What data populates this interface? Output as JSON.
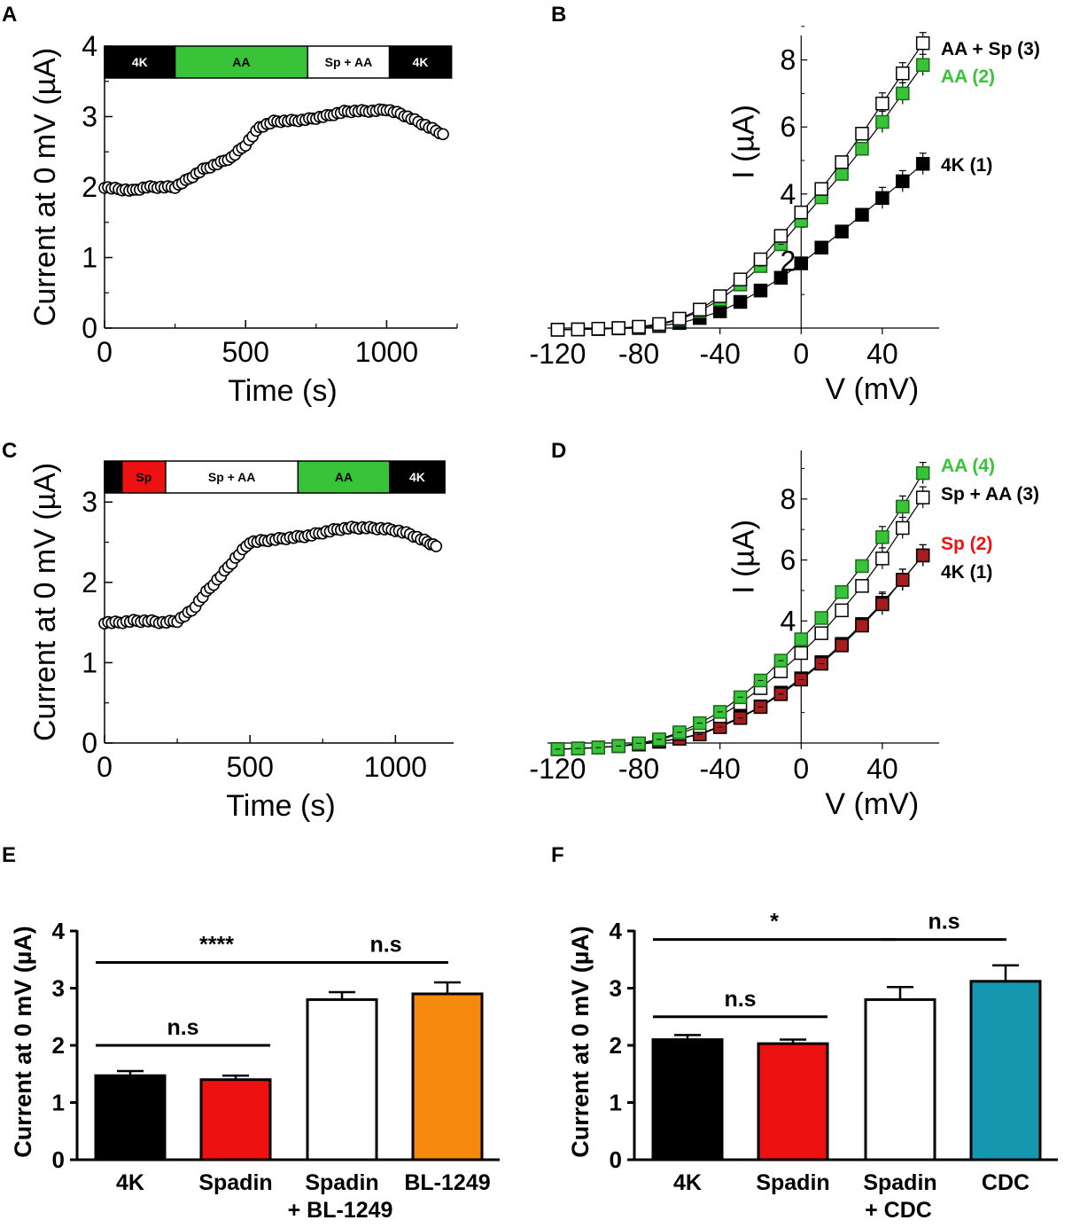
{
  "panels": {
    "A": "A",
    "B": "B",
    "C": "C",
    "D": "D",
    "E": "E",
    "F": "F"
  },
  "colors": {
    "black": "#000000",
    "green": "#38c338",
    "red": "#ee1111",
    "orange": "#f7890f",
    "teal": "#1697b0",
    "white": "#ffffff"
  },
  "chart_data": [
    {
      "id": "A",
      "type": "scatter",
      "xlabel": "Time (s)",
      "ylabel": "Current at 0 mV (µA)",
      "xlim": [
        0,
        1250
      ],
      "ylim": [
        0,
        4
      ],
      "xticks": [
        "0",
        "500",
        "1000"
      ],
      "yticks": [
        "0",
        "1",
        "2",
        "3",
        "4"
      ],
      "protocol": [
        {
          "label": "4K",
          "start": 0,
          "end": 250,
          "color": "#000000",
          "text_color": "#ffffff"
        },
        {
          "label": "AA",
          "start": 250,
          "end": 720,
          "color": "#38c338",
          "text_color": "#000000"
        },
        {
          "label": "Sp + AA",
          "start": 720,
          "end": 1010,
          "color": "#ffffff",
          "text_color": "#000000"
        },
        {
          "label": "4K",
          "start": 1010,
          "end": 1230,
          "color": "#000000",
          "text_color": "#ffffff"
        }
      ],
      "trace": {
        "x": [
          0,
          50,
          100,
          150,
          200,
          250,
          300,
          350,
          400,
          450,
          500,
          550,
          600,
          650,
          700,
          750,
          800,
          850,
          900,
          950,
          1000,
          1050,
          1100,
          1150,
          1200
        ],
        "y": [
          2.0,
          1.97,
          1.95,
          2.0,
          2.0,
          2.0,
          2.12,
          2.25,
          2.33,
          2.42,
          2.6,
          2.85,
          2.93,
          2.94,
          2.95,
          2.98,
          3.02,
          3.07,
          3.08,
          3.08,
          3.1,
          3.04,
          2.95,
          2.85,
          2.75
        ]
      }
    },
    {
      "id": "B",
      "type": "line",
      "xlabel": "V (mV)",
      "ylabel": "I (µA)",
      "xlim": [
        -125,
        68
      ],
      "ylim": [
        -0.2,
        9.0
      ],
      "xticks": [
        "-120",
        "-80",
        "-40",
        "0",
        "40"
      ],
      "yticks": [
        "2",
        "4",
        "6",
        "8"
      ],
      "x": [
        -120,
        -110,
        -100,
        -90,
        -80,
        -70,
        -60,
        -50,
        -40,
        -30,
        -20,
        -10,
        0,
        10,
        20,
        30,
        40,
        50,
        60
      ],
      "series": [
        {
          "name": "4K (1)",
          "color": "#000000",
          "fill": "#000000",
          "values": [
            -0.05,
            -0.04,
            -0.03,
            -0.01,
            0.0,
            0.06,
            0.15,
            0.3,
            0.5,
            0.78,
            1.12,
            1.5,
            1.93,
            2.4,
            2.88,
            3.38,
            3.88,
            4.38,
            4.9
          ]
        },
        {
          "name": "AA (2)",
          "color": "#38c338",
          "fill": "#38c338",
          "values": [
            -0.05,
            -0.04,
            -0.02,
            0.0,
            0.03,
            0.1,
            0.25,
            0.5,
            0.85,
            1.3,
            1.85,
            2.5,
            3.2,
            3.9,
            4.6,
            5.35,
            6.15,
            7.0,
            7.85
          ]
        },
        {
          "name": "AA + Sp (3)",
          "color": "#000000",
          "fill": "#ffffff",
          "values": [
            -0.05,
            -0.04,
            -0.02,
            0.0,
            0.04,
            0.12,
            0.28,
            0.55,
            0.95,
            1.45,
            2.05,
            2.75,
            3.45,
            4.15,
            4.95,
            5.8,
            6.7,
            7.6,
            8.5
          ]
        }
      ]
    },
    {
      "id": "C",
      "type": "scatter",
      "xlabel": "Time (s)",
      "ylabel": "Current at 0 mV (µA)",
      "xlim": [
        0,
        1200
      ],
      "ylim": [
        0,
        3.4
      ],
      "xticks": [
        "0",
        "500",
        "1000"
      ],
      "yticks": [
        "0",
        "1",
        "2",
        "3"
      ],
      "protocol": [
        {
          "label": "Sp",
          "start": 60,
          "end": 210,
          "color": "#ee1111",
          "text_color": "#000000"
        },
        {
          "label": "Sp + AA",
          "start": 210,
          "end": 665,
          "color": "#ffffff",
          "text_color": "#000000"
        },
        {
          "label": "AA",
          "start": 665,
          "end": 980,
          "color": "#38c338",
          "text_color": "#000000"
        },
        {
          "label": "4K",
          "start": 980,
          "end": 1170,
          "color": "#000000",
          "text_color": "#ffffff"
        }
      ],
      "trace": {
        "x": [
          0,
          50,
          100,
          150,
          200,
          250,
          300,
          350,
          400,
          450,
          500,
          550,
          600,
          650,
          700,
          750,
          800,
          850,
          900,
          950,
          1000,
          1050,
          1100,
          1140
        ],
        "y": [
          1.5,
          1.5,
          1.52,
          1.52,
          1.5,
          1.52,
          1.65,
          1.88,
          2.08,
          2.3,
          2.5,
          2.52,
          2.54,
          2.56,
          2.58,
          2.62,
          2.66,
          2.68,
          2.68,
          2.67,
          2.65,
          2.6,
          2.52,
          2.45
        ]
      }
    },
    {
      "id": "D",
      "type": "line",
      "xlabel": "V (mV)",
      "ylabel": "I (µA)",
      "xlim": [
        -125,
        68
      ],
      "ylim": [
        -0.2,
        9.3
      ],
      "xticks": [
        "-120",
        "-80",
        "-40",
        "0",
        "40"
      ],
      "yticks": [
        "4",
        "6",
        "8"
      ],
      "x": [
        -120,
        -110,
        -100,
        -90,
        -80,
        -70,
        -60,
        -50,
        -40,
        -30,
        -20,
        -10,
        0,
        10,
        20,
        30,
        40,
        50,
        60
      ],
      "series": [
        {
          "name": "4K (1)",
          "color": "#000000",
          "fill": "#000000",
          "values": [
            -0.2,
            -0.18,
            -0.15,
            -0.1,
            -0.05,
            0.05,
            0.15,
            0.3,
            0.55,
            0.85,
            1.2,
            1.65,
            2.12,
            2.65,
            3.25,
            3.9,
            4.6,
            5.35,
            6.15
          ]
        },
        {
          "name": "Sp (2)",
          "color": "#ee1111",
          "fill": "#a51d1d",
          "values": [
            -0.2,
            -0.18,
            -0.15,
            -0.1,
            -0.05,
            0.04,
            0.14,
            0.28,
            0.52,
            0.82,
            1.18,
            1.6,
            2.08,
            2.6,
            3.2,
            3.85,
            4.55,
            5.35,
            6.15
          ]
        },
        {
          "name": "Sp + AA (3)",
          "color": "#000000",
          "fill": "#ffffff",
          "values": [
            -0.2,
            -0.18,
            -0.15,
            -0.1,
            -0.02,
            0.1,
            0.3,
            0.55,
            0.88,
            1.3,
            1.8,
            2.35,
            2.95,
            3.6,
            4.35,
            5.15,
            6.05,
            7.05,
            8.05
          ]
        },
        {
          "name": "AA (4)",
          "color": "#38c338",
          "fill": "#38c338",
          "values": [
            -0.2,
            -0.18,
            -0.15,
            -0.1,
            -0.01,
            0.12,
            0.35,
            0.65,
            1.02,
            1.5,
            2.05,
            2.7,
            3.4,
            4.1,
            4.95,
            5.8,
            6.75,
            7.75,
            8.85
          ]
        }
      ]
    },
    {
      "id": "E",
      "type": "bar",
      "ylabel": "Current at 0 mV (µA)",
      "ylim": [
        0,
        4
      ],
      "yticks": [
        "0",
        "1",
        "2",
        "3",
        "4"
      ],
      "categories": [
        [
          "4K"
        ],
        [
          "Spadin"
        ],
        [
          "Spadin",
          "+ BL-1249"
        ],
        [
          "BL-1249"
        ]
      ],
      "values": [
        1.47,
        1.4,
        2.8,
        2.9
      ],
      "errors": [
        0.08,
        0.07,
        0.13,
        0.2
      ],
      "colors": [
        "#000000",
        "#ee1111",
        "#ffffff",
        "#f7890f"
      ],
      "comparisons": [
        {
          "from": 0,
          "to": 1,
          "y": 2.0,
          "label": "n.s"
        },
        {
          "from": 0,
          "to": 2,
          "y": 3.45,
          "label": "****"
        },
        {
          "from": 2,
          "to": 3,
          "y": 3.45,
          "label": "n.s"
        }
      ]
    },
    {
      "id": "F",
      "type": "bar",
      "ylabel": "Current at 0 mV (µA)",
      "ylim": [
        0,
        4
      ],
      "yticks": [
        "0",
        "1",
        "2",
        "3",
        "4"
      ],
      "categories": [
        [
          "4K"
        ],
        [
          "Spadin"
        ],
        [
          "Spadin",
          "+ CDC"
        ],
        [
          "CDC"
        ]
      ],
      "values": [
        2.1,
        2.03,
        2.8,
        3.12
      ],
      "errors": [
        0.08,
        0.07,
        0.22,
        0.28
      ],
      "colors": [
        "#000000",
        "#ee1111",
        "#ffffff",
        "#1697b0"
      ],
      "comparisons": [
        {
          "from": 0,
          "to": 1,
          "y": 2.5,
          "label": "n.s"
        },
        {
          "from": 0,
          "to": 2,
          "y": 3.85,
          "label": "*"
        },
        {
          "from": 2,
          "to": 3,
          "y": 3.85,
          "label": "n.s"
        }
      ]
    }
  ]
}
